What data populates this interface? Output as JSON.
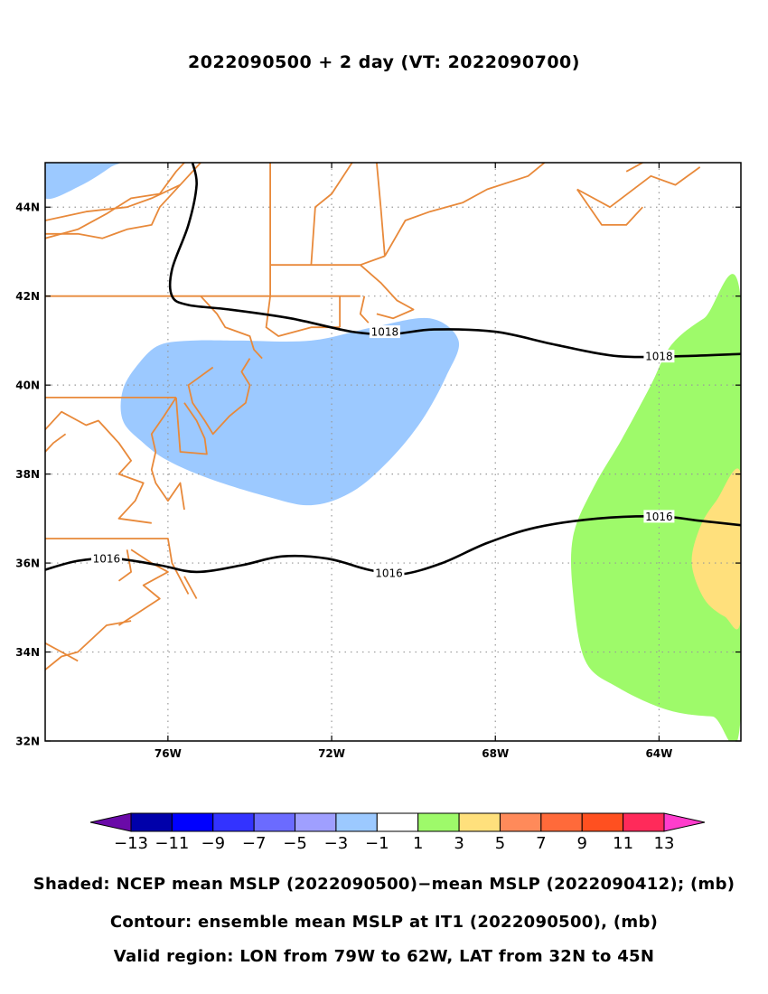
{
  "title": "2022090500 + 2 day (VT: 2022090700)",
  "captions": {
    "shaded": "Shaded: NCEP mean MSLP (2022090500)−mean MSLP (2022090412); (mb)",
    "contour": "Contour: ensemble mean MSLP at IT1 (2022090500), (mb)",
    "region": "Valid region: LON from 79W to 62W, LAT from 32N to 45N"
  },
  "map": {
    "lon_range": [
      -79,
      -62
    ],
    "lat_range": [
      32,
      45
    ],
    "lon_ticks": [
      {
        "value": -76,
        "label": "76W"
      },
      {
        "value": -72,
        "label": "72W"
      },
      {
        "value": -68,
        "label": "68W"
      },
      {
        "value": -64,
        "label": "64W"
      }
    ],
    "lat_ticks": [
      {
        "value": 32,
        "label": "32N"
      },
      {
        "value": 34,
        "label": "34N"
      },
      {
        "value": 36,
        "label": "36N"
      },
      {
        "value": 38,
        "label": "38N"
      },
      {
        "value": 40,
        "label": "40N"
      },
      {
        "value": 42,
        "label": "42N"
      },
      {
        "value": 44,
        "label": "44N"
      }
    ],
    "grid": true,
    "coast_color": "#e8893a",
    "contours": [
      {
        "level": 1018,
        "label": "1018",
        "lonlat": [
          [
            -75.4,
            45
          ],
          [
            -75.3,
            44.5
          ],
          [
            -75.5,
            43.6
          ],
          [
            -75.9,
            42.6
          ],
          [
            -75.9,
            42
          ],
          [
            -75.5,
            41.8
          ],
          [
            -74.5,
            41.7
          ],
          [
            -73,
            41.5
          ],
          [
            -71.5,
            41.2
          ],
          [
            -70.5,
            41.15
          ],
          [
            -69.5,
            41.25
          ],
          [
            -68,
            41.2
          ],
          [
            -66.5,
            40.9
          ],
          [
            -65,
            40.65
          ],
          [
            -63.5,
            40.65
          ],
          [
            -62,
            40.7
          ]
        ],
        "labels_at": [
          [
            -70.7,
            41.2
          ],
          [
            -64,
            40.65
          ]
        ]
      },
      {
        "level": 1016,
        "label": "1016",
        "lonlat": [
          [
            -79,
            35.85
          ],
          [
            -78.2,
            36.05
          ],
          [
            -77.3,
            36.1
          ],
          [
            -76.2,
            35.95
          ],
          [
            -75.3,
            35.8
          ],
          [
            -74.2,
            35.95
          ],
          [
            -73.2,
            36.15
          ],
          [
            -72.1,
            36.1
          ],
          [
            -71.1,
            35.85
          ],
          [
            -70.3,
            35.75
          ],
          [
            -69.3,
            36.0
          ],
          [
            -68.2,
            36.45
          ],
          [
            -67,
            36.8
          ],
          [
            -65.5,
            37.0
          ],
          [
            -64,
            37.05
          ],
          [
            -63,
            36.95
          ],
          [
            -62,
            36.85
          ]
        ],
        "labels_at": [
          [
            -77.5,
            36.1
          ],
          [
            -70.6,
            35.78
          ],
          [
            -64,
            37.05
          ]
        ]
      }
    ],
    "shading": [
      {
        "level": "-3 to -1",
        "color": "#9cc9ff",
        "lonlat": [
          [
            -79,
            44.2
          ],
          [
            -78.1,
            44.5
          ],
          [
            -77.4,
            44.9
          ],
          [
            -77.3,
            45
          ],
          [
            -79,
            45
          ]
        ]
      },
      {
        "level": "-3 to -1",
        "color": "#9cc9ff",
        "lonlat": [
          [
            -76.7,
            40.5
          ],
          [
            -76.2,
            40.9
          ],
          [
            -75.4,
            41.0
          ],
          [
            -74.3,
            41.0
          ],
          [
            -72.5,
            41.0
          ],
          [
            -71.0,
            41.3
          ],
          [
            -69.6,
            41.5
          ],
          [
            -68.9,
            41.0
          ],
          [
            -69.2,
            40.2
          ],
          [
            -69.8,
            39.2
          ],
          [
            -70.6,
            38.3
          ],
          [
            -71.5,
            37.6
          ],
          [
            -72.5,
            37.3
          ],
          [
            -73.6,
            37.5
          ],
          [
            -75.0,
            37.9
          ],
          [
            -76.0,
            38.3
          ],
          [
            -76.6,
            38.7
          ],
          [
            -77.1,
            39.2
          ],
          [
            -77.1,
            39.9
          ]
        ]
      },
      {
        "level": "1 to 3",
        "color": "#9efa6a",
        "lonlat": [
          [
            -62,
            41.9
          ],
          [
            -62.9,
            41.5
          ],
          [
            -63.7,
            40.9
          ],
          [
            -64.2,
            40.0
          ],
          [
            -64.9,
            38.8
          ],
          [
            -65.6,
            37.7
          ],
          [
            -66.1,
            36.6
          ],
          [
            -66.1,
            35.3
          ],
          [
            -65.8,
            33.8
          ],
          [
            -65.0,
            33.2
          ],
          [
            -63.8,
            32.7
          ],
          [
            -62.7,
            32.55
          ],
          [
            -62,
            32.6
          ]
        ]
      },
      {
        "level": "3 to 5",
        "color": "#ffe07c",
        "lonlat": [
          [
            -62,
            38.0
          ],
          [
            -62.6,
            37.4
          ],
          [
            -63.0,
            36.8
          ],
          [
            -63.2,
            36.0
          ],
          [
            -62.9,
            35.2
          ],
          [
            -62.4,
            34.8
          ],
          [
            -62,
            34.75
          ]
        ]
      }
    ],
    "coastlines": [
      [
        [
          -79,
          43.4
        ],
        [
          -78.2,
          43.4
        ],
        [
          -77.6,
          43.3
        ],
        [
          -77.0,
          43.5
        ],
        [
          -76.4,
          43.6
        ],
        [
          -76.2,
          44.0
        ],
        [
          -75.6,
          44.6
        ],
        [
          -75.2,
          45.0
        ]
      ],
      [
        [
          -79,
          43.7
        ],
        [
          -78.0,
          43.9
        ],
        [
          -77.0,
          44.0
        ],
        [
          -76.4,
          44.2
        ],
        [
          -75.7,
          44.5
        ]
      ],
      [
        [
          -79,
          43.3
        ],
        [
          -78.2,
          43.5
        ],
        [
          -77.5,
          43.85
        ],
        [
          -76.9,
          44.2
        ],
        [
          -76.2,
          44.3
        ],
        [
          -75.8,
          44.8
        ],
        [
          -75.6,
          45.0
        ]
      ],
      [
        [
          -79,
          42.0
        ],
        [
          -75.2,
          42.0
        ],
        [
          -73.5,
          42.0
        ]
      ],
      [
        [
          -75.2,
          42.0
        ],
        [
          -74.8,
          41.6
        ],
        [
          -74.6,
          41.3
        ],
        [
          -74.0,
          41.1
        ],
        [
          -73.9,
          40.8
        ],
        [
          -73.7,
          40.6
        ]
      ],
      [
        [
          -73.5,
          42.0
        ],
        [
          -73.6,
          41.3
        ],
        [
          -73.3,
          41.1
        ],
        [
          -72.5,
          41.3
        ],
        [
          -71.8,
          41.3
        ]
      ],
      [
        [
          -73.5,
          42.0
        ],
        [
          -73.5,
          45.0
        ]
      ],
      [
        [
          -73.5,
          42.7
        ],
        [
          -72.6,
          42.7
        ],
        [
          -71.3,
          42.7
        ],
        [
          -70.7,
          42.9
        ]
      ],
      [
        [
          -72.5,
          42.7
        ],
        [
          -72.4,
          44.0
        ],
        [
          -72.0,
          44.3
        ],
        [
          -71.5,
          45.0
        ]
      ],
      [
        [
          -71.3,
          42.7
        ],
        [
          -70.8,
          42.3
        ],
        [
          -70.4,
          41.9
        ],
        [
          -70.0,
          41.7
        ],
        [
          -70.5,
          41.5
        ],
        [
          -70.9,
          41.6
        ]
      ],
      [
        [
          -71.8,
          42.0
        ],
        [
          -71.8,
          41.3
        ]
      ],
      [
        [
          -71.2,
          42.0
        ],
        [
          -71.3,
          41.6
        ],
        [
          -71.1,
          41.4
        ]
      ],
      [
        [
          -73.5,
          42.0
        ],
        [
          -71.3,
          42.0
        ]
      ],
      [
        [
          -70.7,
          42.9
        ],
        [
          -70.2,
          43.7
        ],
        [
          -69.6,
          43.9
        ],
        [
          -68.8,
          44.1
        ],
        [
          -68.2,
          44.4
        ],
        [
          -67.2,
          44.7
        ],
        [
          -66.8,
          45.0
        ]
      ],
      [
        [
          -70.7,
          42.9
        ],
        [
          -70.8,
          44.0
        ],
        [
          -70.9,
          45.0
        ]
      ],
      [
        [
          -66.0,
          44.4
        ],
        [
          -65.2,
          44.0
        ],
        [
          -64.2,
          44.7
        ],
        [
          -63.6,
          44.5
        ],
        [
          -63.0,
          44.9
        ]
      ],
      [
        [
          -66.0,
          44.4
        ],
        [
          -65.4,
          43.6
        ],
        [
          -64.8,
          43.6
        ],
        [
          -64.4,
          44.0
        ]
      ],
      [
        [
          -64.8,
          44.8
        ],
        [
          -64.4,
          45.0
        ]
      ],
      [
        [
          -74.0,
          40.6
        ],
        [
          -74.2,
          40.3
        ],
        [
          -74.0,
          40.0
        ],
        [
          -74.1,
          39.6
        ],
        [
          -74.5,
          39.3
        ],
        [
          -74.9,
          38.9
        ],
        [
          -75.1,
          39.2
        ],
        [
          -75.4,
          39.6
        ],
        [
          -75.5,
          40.0
        ],
        [
          -74.9,
          40.4
        ]
      ],
      [
        [
          -79,
          39.72
        ],
        [
          -75.8,
          39.72
        ]
      ],
      [
        [
          -75.8,
          39.72
        ],
        [
          -75.7,
          38.5
        ],
        [
          -75.05,
          38.45
        ],
        [
          -75.1,
          38.8
        ],
        [
          -75.3,
          39.2
        ],
        [
          -75.6,
          39.6
        ]
      ],
      [
        [
          -75.8,
          39.72
        ],
        [
          -76.1,
          39.3
        ],
        [
          -76.4,
          38.9
        ],
        [
          -76.3,
          38.5
        ],
        [
          -76.4,
          38.1
        ],
        [
          -76.3,
          37.8
        ],
        [
          -76.0,
          37.4
        ],
        [
          -75.7,
          37.8
        ],
        [
          -75.6,
          37.2
        ]
      ],
      [
        [
          -79,
          39.0
        ],
        [
          -78.6,
          39.4
        ],
        [
          -78.0,
          39.1
        ],
        [
          -77.7,
          39.2
        ],
        [
          -77.2,
          38.7
        ],
        [
          -76.9,
          38.3
        ],
        [
          -77.2,
          38.0
        ],
        [
          -76.6,
          37.8
        ],
        [
          -76.8,
          37.4
        ],
        [
          -77.2,
          37.0
        ],
        [
          -76.4,
          36.9
        ]
      ],
      [
        [
          -78.5,
          38.9
        ],
        [
          -78.8,
          38.7
        ],
        [
          -79,
          38.5
        ]
      ],
      [
        [
          -79,
          36.55
        ],
        [
          -76.0,
          36.55
        ],
        [
          -75.9,
          36.0
        ],
        [
          -75.5,
          35.3
        ]
      ],
      [
        [
          -76.9,
          36.3
        ],
        [
          -76.4,
          36.0
        ],
        [
          -76.0,
          35.8
        ],
        [
          -76.6,
          35.5
        ],
        [
          -76.2,
          35.2
        ],
        [
          -76.7,
          34.9
        ],
        [
          -77.2,
          34.6
        ]
      ],
      [
        [
          -75.6,
          35.7
        ],
        [
          -75.3,
          35.2
        ]
      ],
      [
        [
          -76.9,
          34.7
        ],
        [
          -77.5,
          34.6
        ],
        [
          -78.2,
          34.0
        ],
        [
          -78.6,
          33.9
        ],
        [
          -79,
          33.6
        ]
      ],
      [
        [
          -77.0,
          36.3
        ],
        [
          -76.9,
          35.8
        ],
        [
          -77.2,
          35.6
        ]
      ],
      [
        [
          -79,
          34.2
        ],
        [
          -78.6,
          34.0
        ],
        [
          -78.2,
          33.8
        ]
      ]
    ]
  },
  "colorbar": {
    "colors": [
      "#6a0aa8",
      "#0000aa",
      "#0000ff",
      "#3333ff",
      "#6b6bff",
      "#9f9fff",
      "#9cc9ff",
      "#ffffff",
      "#9efa6a",
      "#ffe07c",
      "#ff8a5a",
      "#ff6a3a",
      "#ff5020",
      "#ff2a5a",
      "#ff3dcc"
    ],
    "labels": [
      "−13",
      "−11",
      "−9",
      "−7",
      "−5",
      "−3",
      "−1",
      "1",
      "3",
      "5",
      "7",
      "9",
      "11",
      "13"
    ]
  }
}
